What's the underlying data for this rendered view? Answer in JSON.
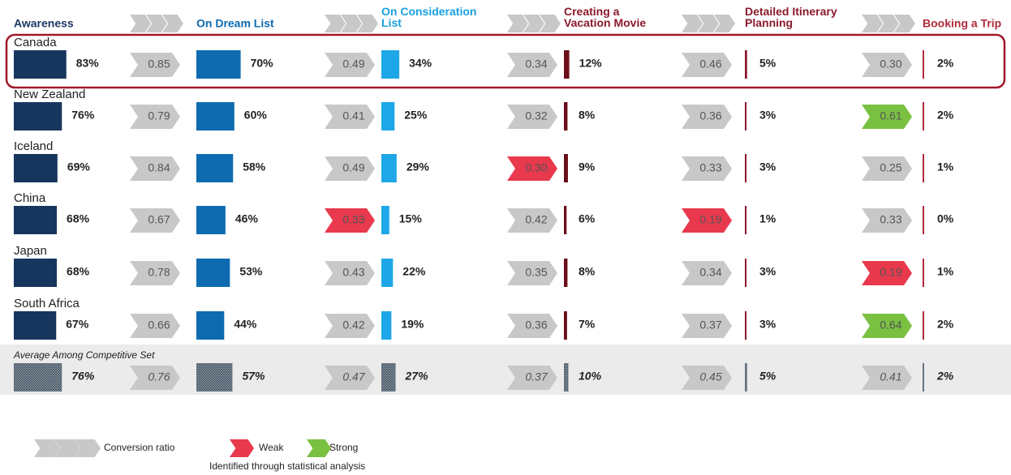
{
  "stages": [
    {
      "name": "Awareness",
      "color": "#1f3864",
      "bar_color": "#17365d"
    },
    {
      "name": "On Dream List",
      "color": "#0e6bb0",
      "bar_color": "#0e6bb0"
    },
    {
      "name": "On Consideration List",
      "color": "#1aa0e0",
      "bar_color": "#1ea7e8"
    },
    {
      "name": "Creating a Vacation Movie",
      "color": "#8b1a2b",
      "bar_color": "#6b0f1a"
    },
    {
      "name": "Detailed Itinerary Planning",
      "color": "#8b1a2b",
      "bar_color": "#8b1a2b"
    },
    {
      "name": "Booking a Trip",
      "color": "#b02a3a",
      "bar_color": "#b02a3a"
    }
  ],
  "rows": [
    {
      "name": "Canada",
      "values": [
        83,
        70,
        34,
        12,
        5,
        2
      ],
      "value_labels": [
        "83%",
        "70%",
        "34%",
        "12%",
        "5%",
        "2%"
      ],
      "ratios": [
        0.85,
        0.49,
        0.34,
        0.46,
        0.3
      ],
      "ratio_labels": [
        "0.85",
        "0.49",
        "0.34",
        "0.46",
        "0.30"
      ],
      "signals": [
        null,
        null,
        null,
        null,
        null
      ]
    },
    {
      "name": "New Zealand",
      "values": [
        76,
        60,
        25,
        8,
        3,
        2
      ],
      "value_labels": [
        "76%",
        "60%",
        "25%",
        "8%",
        "3%",
        "2%"
      ],
      "ratios": [
        0.79,
        0.41,
        0.32,
        0.36,
        0.61
      ],
      "ratio_labels": [
        "0.79",
        "0.41",
        "0.32",
        "0.36",
        "0.61"
      ],
      "signals": [
        null,
        null,
        null,
        null,
        "strong"
      ]
    },
    {
      "name": "Iceland",
      "values": [
        69,
        58,
        29,
        9,
        3,
        1
      ],
      "value_labels": [
        "69%",
        "58%",
        "29%",
        "9%",
        "3%",
        "1%"
      ],
      "ratios": [
        0.84,
        0.49,
        0.3,
        0.33,
        0.25
      ],
      "ratio_labels": [
        "0.84",
        "0.49",
        "0.30",
        "0.33",
        "0.25"
      ],
      "signals": [
        null,
        null,
        "weak",
        null,
        null
      ]
    },
    {
      "name": "China",
      "values": [
        68,
        46,
        15,
        6,
        1,
        0
      ],
      "value_labels": [
        "68%",
        "46%",
        "15%",
        "6%",
        "1%",
        "0%"
      ],
      "ratios": [
        0.67,
        0.33,
        0.42,
        0.19,
        0.33
      ],
      "ratio_labels": [
        "0.67",
        "0.33",
        "0.42",
        "0.19",
        "0.33"
      ],
      "signals": [
        null,
        "weak",
        null,
        "weak",
        null
      ]
    },
    {
      "name": "Japan",
      "values": [
        68,
        53,
        22,
        8,
        3,
        1
      ],
      "value_labels": [
        "68%",
        "53%",
        "22%",
        "8%",
        "3%",
        "1%"
      ],
      "ratios": [
        0.78,
        0.43,
        0.35,
        0.34,
        0.19
      ],
      "ratio_labels": [
        "0.78",
        "0.43",
        "0.35",
        "0.34",
        "0.19"
      ],
      "signals": [
        null,
        null,
        null,
        null,
        "weak"
      ]
    },
    {
      "name": "South Africa",
      "values": [
        67,
        44,
        19,
        7,
        3,
        2
      ],
      "value_labels": [
        "67%",
        "44%",
        "19%",
        "7%",
        "3%",
        "2%"
      ],
      "ratios": [
        0.66,
        0.42,
        0.36,
        0.37,
        0.64
      ],
      "ratio_labels": [
        "0.66",
        "0.42",
        "0.36",
        "0.37",
        "0.64"
      ],
      "signals": [
        null,
        null,
        null,
        null,
        "strong"
      ]
    }
  ],
  "average": {
    "name": "Average Among Competitive Set",
    "values": [
      76,
      57,
      27,
      10,
      5,
      2
    ],
    "value_labels": [
      "76%",
      "57%",
      "27%",
      "10%",
      "5%",
      "2%"
    ],
    "ratios": [
      0.76,
      0.47,
      0.37,
      0.45,
      0.41
    ],
    "ratio_labels": [
      "0.76",
      "0.47",
      "0.37",
      "0.45",
      "0.41"
    ]
  },
  "highlight_row": 0,
  "ratio_color": "#c8c8c8",
  "signal_colors": {
    "weak": "#e8394d",
    "strong": "#7ac142"
  },
  "legend": {
    "ratio": "Conversion ratio",
    "weak": "Weak",
    "strong": "Strong",
    "note": "Identified through statistical analysis"
  }
}
